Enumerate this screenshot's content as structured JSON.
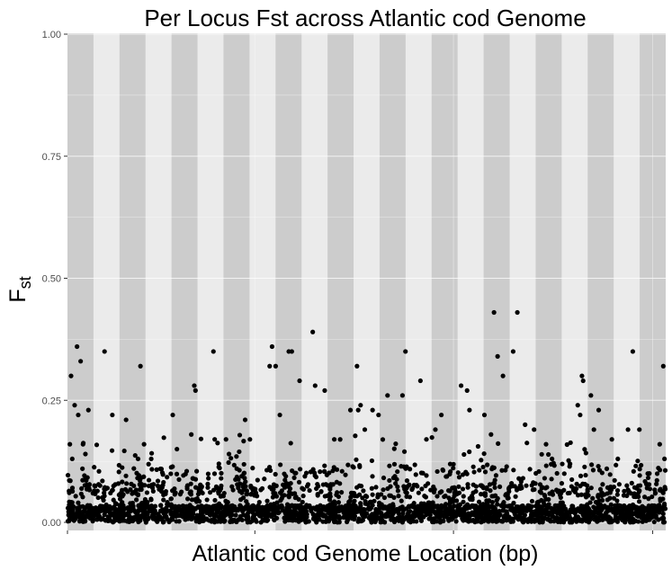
{
  "chart_data": {
    "type": "scatter",
    "title": "Per Locus Fst across Atlantic cod Genome",
    "xlabel": "Atlantic cod Genome Location (bp)",
    "ylabel": "F",
    "ylabel_subscript": "st",
    "ylim": [
      0,
      1
    ],
    "yticks": [
      "0.00",
      "0.25",
      "0.50",
      "0.75",
      "1.00"
    ],
    "grid": true,
    "legend": "none",
    "colors": {
      "panel": "#ebebeb",
      "band_dark": "#cccccc",
      "point": "#000000",
      "gridline": "#ffffff",
      "tick_text": "#4d4d4d"
    },
    "chromosome_bands": 23,
    "points_note_only_for_script": false,
    "points": [
      [
        0.004,
        0.16
      ],
      [
        0.006,
        0.3
      ],
      [
        0.012,
        0.24
      ],
      [
        0.016,
        0.36
      ],
      [
        0.022,
        0.33
      ],
      [
        0.018,
        0.22
      ],
      [
        0.026,
        0.16
      ],
      [
        0.008,
        0.13
      ],
      [
        0.03,
        0.14
      ],
      [
        0.035,
        0.23
      ],
      [
        0.062,
        0.35
      ],
      [
        0.075,
        0.22
      ],
      [
        0.098,
        0.21
      ],
      [
        0.122,
        0.32
      ],
      [
        0.128,
        0.16
      ],
      [
        0.118,
        0.13
      ],
      [
        0.14,
        0.13
      ],
      [
        0.176,
        0.22
      ],
      [
        0.183,
        0.15
      ],
      [
        0.207,
        0.18
      ],
      [
        0.21,
        0.09
      ],
      [
        0.212,
        0.28
      ],
      [
        0.214,
        0.27
      ],
      [
        0.244,
        0.35
      ],
      [
        0.265,
        0.17
      ],
      [
        0.27,
        0.14
      ],
      [
        0.283,
        0.11
      ],
      [
        0.297,
        0.21
      ],
      [
        0.305,
        0.17
      ],
      [
        0.342,
        0.36
      ],
      [
        0.338,
        0.32
      ],
      [
        0.348,
        0.32
      ],
      [
        0.355,
        0.22
      ],
      [
        0.37,
        0.35
      ],
      [
        0.375,
        0.35
      ],
      [
        0.388,
        0.29
      ],
      [
        0.41,
        0.39
      ],
      [
        0.414,
        0.28
      ],
      [
        0.43,
        0.27
      ],
      [
        0.446,
        0.17
      ],
      [
        0.473,
        0.23
      ],
      [
        0.484,
        0.32
      ],
      [
        0.486,
        0.23
      ],
      [
        0.49,
        0.24
      ],
      [
        0.497,
        0.19
      ],
      [
        0.51,
        0.23
      ],
      [
        0.52,
        0.22
      ],
      [
        0.535,
        0.26
      ],
      [
        0.56,
        0.26
      ],
      [
        0.565,
        0.35
      ],
      [
        0.59,
        0.29
      ],
      [
        0.6,
        0.17
      ],
      [
        0.615,
        0.19
      ],
      [
        0.625,
        0.22
      ],
      [
        0.658,
        0.28
      ],
      [
        0.668,
        0.27
      ],
      [
        0.672,
        0.23
      ],
      [
        0.697,
        0.22
      ],
      [
        0.708,
        0.18
      ],
      [
        0.713,
        0.43
      ],
      [
        0.719,
        0.34
      ],
      [
        0.728,
        0.3
      ],
      [
        0.745,
        0.35
      ],
      [
        0.752,
        0.43
      ],
      [
        0.765,
        0.2
      ],
      [
        0.78,
        0.19
      ],
      [
        0.8,
        0.16
      ],
      [
        0.81,
        0.13
      ],
      [
        0.853,
        0.24
      ],
      [
        0.857,
        0.22
      ],
      [
        0.86,
        0.3
      ],
      [
        0.862,
        0.29
      ],
      [
        0.875,
        0.26
      ],
      [
        0.88,
        0.19
      ],
      [
        0.888,
        0.23
      ],
      [
        0.91,
        0.17
      ],
      [
        0.92,
        0.13
      ],
      [
        0.937,
        0.19
      ],
      [
        0.945,
        0.35
      ],
      [
        0.956,
        0.19
      ],
      [
        0.97,
        0.1
      ],
      [
        0.99,
        0.16
      ],
      [
        0.996,
        0.32
      ],
      [
        0.998,
        0.13
      ]
    ]
  }
}
